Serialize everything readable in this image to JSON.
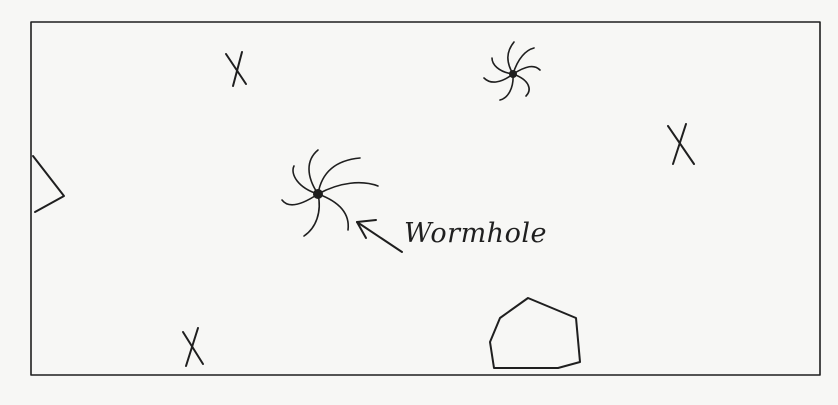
{
  "annotation": {
    "wormhole_label": "Wormhole"
  },
  "icons": {
    "player_ship": "triangle-ship-icon",
    "wormhole": "spiral-wormhole-icon",
    "target": "x-marker-icon",
    "asteroid": "polygon-asteroid-icon"
  },
  "colors": {
    "paper": "#f7f7f5",
    "ink": "#1f1f1f"
  }
}
